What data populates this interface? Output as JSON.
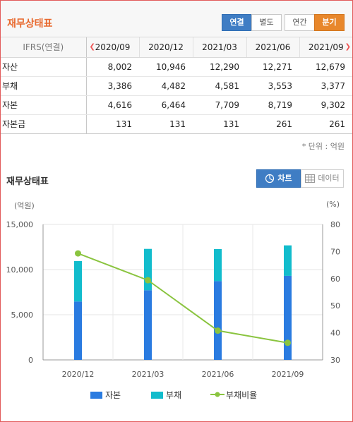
{
  "header": {
    "title": "재무상태표",
    "segments": {
      "consolidated": "연결",
      "separate": "별도",
      "annual": "연간",
      "quarterly": "분기"
    }
  },
  "table": {
    "first_header": "IFRS(연결)",
    "periods": [
      "2020/09",
      "2020/12",
      "2021/03",
      "2021/06",
      "2021/09"
    ],
    "rows": [
      {
        "label": "자산",
        "values": [
          "8,002",
          "10,946",
          "12,290",
          "12,271",
          "12,679"
        ]
      },
      {
        "label": "부채",
        "values": [
          "3,386",
          "4,482",
          "4,581",
          "3,553",
          "3,377"
        ]
      },
      {
        "label": "자본",
        "values": [
          "4,616",
          "6,464",
          "7,709",
          "8,719",
          "9,302"
        ]
      },
      {
        "label": "자본금",
        "values": [
          "131",
          "131",
          "131",
          "261",
          "261"
        ]
      }
    ],
    "unit_note": "* 단위 : 억원"
  },
  "chart_section": {
    "title": "재무상태표",
    "chart_button": "차트",
    "data_button": "데이터",
    "left_unit": "(억원)",
    "right_unit": "(%)"
  },
  "chart_data": {
    "type": "bar",
    "categories": [
      "2020/12",
      "2021/03",
      "2021/06",
      "2021/09"
    ],
    "series": [
      {
        "name": "자본",
        "type": "stacked-bar",
        "axis": "left",
        "color": "#2a7be0",
        "values": [
          6464,
          7709,
          8719,
          9302
        ]
      },
      {
        "name": "부채",
        "type": "stacked-bar",
        "axis": "left",
        "color": "#12bccc",
        "values": [
          4482,
          4581,
          3553,
          3377
        ]
      },
      {
        "name": "부채비율",
        "type": "line",
        "axis": "right",
        "color": "#8ac43f",
        "values": [
          69.3,
          59.4,
          40.8,
          36.3
        ]
      }
    ],
    "y_left": {
      "min": 0,
      "max": 15000,
      "ticks": [
        "0",
        "5,000",
        "10,000",
        "15,000"
      ]
    },
    "y_right": {
      "min": 30,
      "max": 80,
      "ticks": [
        "30",
        "40",
        "50",
        "60",
        "70",
        "80"
      ]
    },
    "legend": [
      "자본",
      "부채",
      "부채비율"
    ],
    "legend_position": "bottom"
  }
}
